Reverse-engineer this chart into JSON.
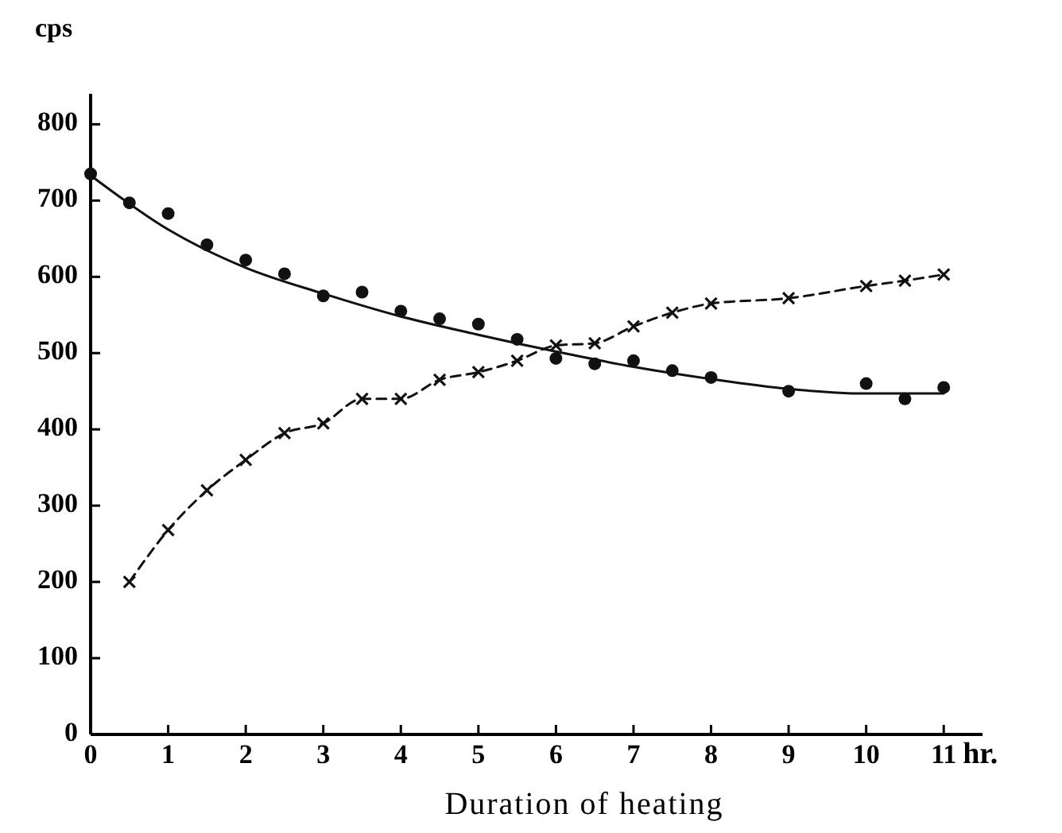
{
  "chart_data": {
    "type": "scatter",
    "xlabel": "Duration of heating",
    "ylabel": "cps",
    "annotations": [
      "hr."
    ],
    "xlim": [
      0,
      11.5
    ],
    "ylim": [
      0,
      840
    ],
    "xticks": [
      0,
      1,
      2,
      3,
      4,
      5,
      6,
      7,
      8,
      9,
      10,
      11
    ],
    "yticks": [
      0,
      100,
      200,
      300,
      400,
      500,
      600,
      700,
      800
    ],
    "grid": false,
    "series": [
      {
        "marker": "circle",
        "color": "#111111",
        "x": [
          0,
          0.5,
          1,
          1.5,
          2,
          2.5,
          3,
          3.5,
          4,
          4.5,
          5,
          5.5,
          6,
          6.5,
          7,
          7.5,
          8,
          9,
          10,
          10.5,
          11
        ],
        "values": [
          735,
          697,
          683,
          642,
          622,
          604,
          575,
          580,
          555,
          545,
          538,
          518,
          493,
          486,
          490,
          477,
          468,
          450,
          460,
          440,
          455
        ]
      },
      {
        "type": "line",
        "marker": "cross",
        "line_style": "dashed",
        "color": "#111111",
        "x": [
          0.5,
          1,
          1.5,
          2,
          2.5,
          3,
          3.5,
          4,
          4.5,
          5,
          5.5,
          6,
          6.5,
          7,
          7.5,
          8,
          9,
          10,
          10.5,
          11
        ],
        "values": [
          200,
          268,
          320,
          360,
          395,
          408,
          440,
          440,
          465,
          475,
          490,
          510,
          513,
          535,
          553,
          565,
          572,
          588,
          595,
          603
        ]
      },
      {
        "type": "line",
        "marker": "none",
        "line_style": "solid",
        "color": "#111111",
        "x": [
          0,
          1,
          2,
          3,
          4,
          5,
          6,
          7,
          8,
          9,
          10,
          11
        ],
        "values": [
          733,
          662,
          612,
          578,
          548,
          524,
          502,
          482,
          466,
          453,
          447,
          447
        ]
      }
    ]
  }
}
